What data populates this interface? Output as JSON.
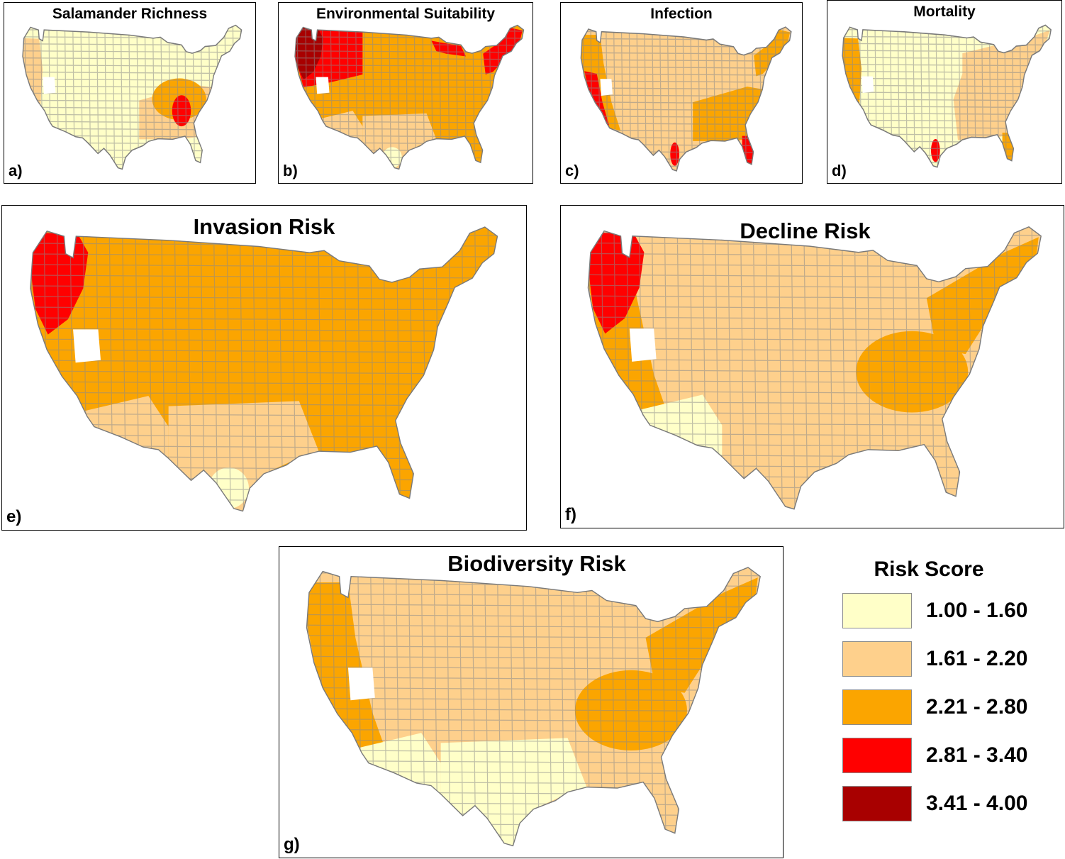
{
  "colors": {
    "class1": "#ffffc8",
    "class2": "#fed08c",
    "class3": "#fba500",
    "class4": "#ff0000",
    "class5": "#a80000",
    "border": "#8a8a8a"
  },
  "panels": [
    {
      "id": "a",
      "title": "Salamander Richness",
      "label": "a)",
      "base": "class1",
      "regions": [
        {
          "area": "southeast",
          "class": "class2"
        },
        {
          "area": "appalachia",
          "class": "class3"
        },
        {
          "area": "south-appalachia",
          "class": "class4"
        },
        {
          "area": "pacific-coast",
          "class": "class2"
        }
      ]
    },
    {
      "id": "b",
      "title": "Environmental Suitability",
      "label": "b)",
      "base": "class3",
      "regions": [
        {
          "area": "southwest",
          "class": "class2"
        },
        {
          "area": "south-central",
          "class": "class2"
        },
        {
          "area": "south-tip",
          "class": "class1"
        },
        {
          "area": "northwest",
          "class": "class4"
        },
        {
          "area": "pacific-northwest",
          "class": "class5"
        },
        {
          "area": "great-lakes",
          "class": "class4"
        },
        {
          "area": "new-england",
          "class": "class4"
        }
      ]
    },
    {
      "id": "c",
      "title": "Infection",
      "label": "c)",
      "base": "class2",
      "regions": [
        {
          "area": "southeast",
          "class": "class3"
        },
        {
          "area": "west-coast",
          "class": "class3"
        },
        {
          "area": "california",
          "class": "class4"
        },
        {
          "area": "texas-coast",
          "class": "class4"
        },
        {
          "area": "florida",
          "class": "class4"
        },
        {
          "area": "new-england",
          "class": "class3"
        }
      ]
    },
    {
      "id": "d",
      "title": "Mortality",
      "label": "d)",
      "base": "class1",
      "regions": [
        {
          "area": "east",
          "class": "class2"
        },
        {
          "area": "pacific-coast",
          "class": "class3"
        },
        {
          "area": "florida",
          "class": "class3"
        },
        {
          "area": "texas-coast",
          "class": "class4"
        }
      ]
    },
    {
      "id": "e",
      "title": "Invasion Risk",
      "label": "e)",
      "base": "class3",
      "regions": [
        {
          "area": "south-central",
          "class": "class2"
        },
        {
          "area": "south-tip",
          "class": "class1"
        },
        {
          "area": "southwest",
          "class": "class2"
        },
        {
          "area": "pacific-northwest",
          "class": "class4"
        }
      ]
    },
    {
      "id": "f",
      "title": "Decline Risk",
      "label": "f)",
      "base": "class2",
      "regions": [
        {
          "area": "appalachia",
          "class": "class3"
        },
        {
          "area": "northeast",
          "class": "class3"
        },
        {
          "area": "west-coast",
          "class": "class3"
        },
        {
          "area": "southwest",
          "class": "class1"
        },
        {
          "area": "pacific-northwest",
          "class": "class4"
        }
      ]
    },
    {
      "id": "g",
      "title": "Biodiversity Risk",
      "label": "g)",
      "base": "class2",
      "regions": [
        {
          "area": "appalachia",
          "class": "class3"
        },
        {
          "area": "northeast",
          "class": "class3"
        },
        {
          "area": "west-coast",
          "class": "class3"
        },
        {
          "area": "south-central",
          "class": "class1"
        },
        {
          "area": "southwest",
          "class": "class1"
        }
      ]
    }
  ],
  "legend": {
    "title": "Risk Score",
    "items": [
      {
        "label": "1.00 - 1.60",
        "class": "class1"
      },
      {
        "label": "1.61 - 2.20",
        "class": "class2"
      },
      {
        "label": "2.21 - 2.80",
        "class": "class3"
      },
      {
        "label": "2.81 - 3.40",
        "class": "class4"
      },
      {
        "label": "3.41 - 4.00",
        "class": "class5"
      }
    ]
  }
}
